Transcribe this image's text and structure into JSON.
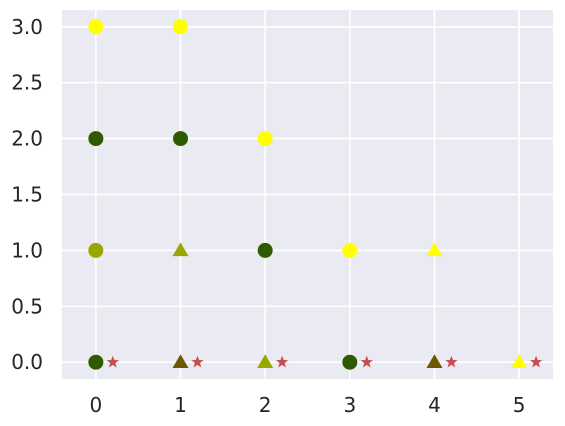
{
  "chart_data": {
    "type": "scatter",
    "title": "",
    "xlabel": "",
    "ylabel": "",
    "xlim": [
      -0.4,
      5.4
    ],
    "ylim": [
      -0.15,
      3.15
    ],
    "xticks": [
      0,
      1,
      2,
      3,
      4,
      5
    ],
    "yticks": [
      0.0,
      0.5,
      1.0,
      1.5,
      2.0,
      2.5,
      3.0
    ],
    "xtick_labels": [
      "0",
      "1",
      "2",
      "3",
      "4",
      "5"
    ],
    "ytick_labels": [
      "0.0",
      "0.5",
      "1.0",
      "1.5",
      "2.0",
      "2.5",
      "3.0"
    ],
    "grid": true,
    "background": "#eaeaf2",
    "grid_color": "#ffffff",
    "points": [
      {
        "x": 0,
        "y": 3,
        "marker": "circle",
        "color": "#ffff00"
      },
      {
        "x": 1,
        "y": 3,
        "marker": "circle",
        "color": "#ffff00"
      },
      {
        "x": 0,
        "y": 2,
        "marker": "circle",
        "color": "#2f5a00"
      },
      {
        "x": 1,
        "y": 2,
        "marker": "circle",
        "color": "#2f5a00"
      },
      {
        "x": 2,
        "y": 2,
        "marker": "circle",
        "color": "#ffff00"
      },
      {
        "x": 0,
        "y": 1,
        "marker": "circle",
        "color": "#98a800"
      },
      {
        "x": 1,
        "y": 1,
        "marker": "triangle",
        "color": "#98a800"
      },
      {
        "x": 2,
        "y": 1,
        "marker": "circle",
        "color": "#2f5a00"
      },
      {
        "x": 3,
        "y": 1,
        "marker": "circle",
        "color": "#ffff00"
      },
      {
        "x": 4,
        "y": 1,
        "marker": "triangle",
        "color": "#ffff00"
      },
      {
        "x": 0,
        "y": 0,
        "marker": "circle",
        "color": "#2f5a00"
      },
      {
        "x": 1,
        "y": 0,
        "marker": "triangle",
        "color": "#6b5a00"
      },
      {
        "x": 2,
        "y": 0,
        "marker": "triangle",
        "color": "#98a800"
      },
      {
        "x": 3,
        "y": 0,
        "marker": "circle",
        "color": "#2f5a00"
      },
      {
        "x": 4,
        "y": 0,
        "marker": "triangle",
        "color": "#6b5a00"
      },
      {
        "x": 5,
        "y": 0,
        "marker": "triangle",
        "color": "#ffff00"
      },
      {
        "x": 0.2,
        "y": 0,
        "marker": "star",
        "color": "#c44e52"
      },
      {
        "x": 1.2,
        "y": 0,
        "marker": "star",
        "color": "#c44e52"
      },
      {
        "x": 2.2,
        "y": 0,
        "marker": "star",
        "color": "#c44e52"
      },
      {
        "x": 3.2,
        "y": 0,
        "marker": "star",
        "color": "#c44e52"
      },
      {
        "x": 4.2,
        "y": 0,
        "marker": "star",
        "color": "#c44e52"
      },
      {
        "x": 5.2,
        "y": 0,
        "marker": "star",
        "color": "#c44e52"
      }
    ]
  }
}
